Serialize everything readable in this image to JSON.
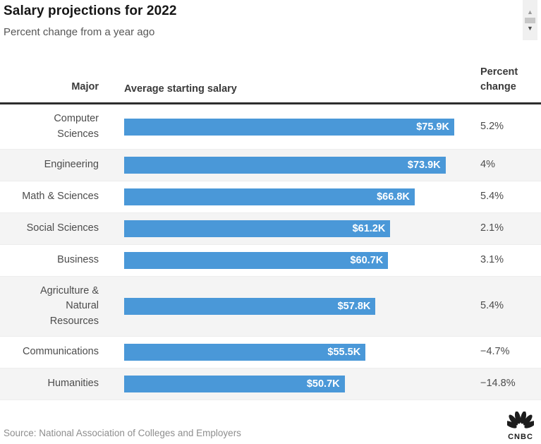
{
  "header": {
    "title": "Salary projections for 2022",
    "subtitle": "Percent change from a year ago"
  },
  "icons": {
    "scroll_up": "▲",
    "scroll_down": "▼"
  },
  "table": {
    "columns": {
      "major": "Major",
      "salary": "Average starting salary",
      "percent": "Percent\nchange"
    }
  },
  "rows": [
    {
      "major": "Computer\nSciences",
      "salary_label": "$75.9K",
      "percent_label": "5.2%"
    },
    {
      "major": "Engineering",
      "salary_label": "$73.9K",
      "percent_label": "4%"
    },
    {
      "major": "Math & Sciences",
      "salary_label": "$66.8K",
      "percent_label": "5.4%"
    },
    {
      "major": "Social Sciences",
      "salary_label": "$61.2K",
      "percent_label": "2.1%"
    },
    {
      "major": "Business",
      "salary_label": "$60.7K",
      "percent_label": "3.1%"
    },
    {
      "major": "Agriculture &\nNatural\nResources",
      "salary_label": "$57.8K",
      "percent_label": "5.4%"
    },
    {
      "major": "Communications",
      "salary_label": "$55.5K",
      "percent_label": "−4.7%"
    },
    {
      "major": "Humanities",
      "salary_label": "$50.7K",
      "percent_label": "−14.8%"
    }
  ],
  "chart_data": {
    "type": "bar",
    "orientation": "horizontal",
    "title": "Salary projections for 2022",
    "subtitle": "Percent change from a year ago",
    "categories": [
      "Computer Sciences",
      "Engineering",
      "Math & Sciences",
      "Social Sciences",
      "Business",
      "Agriculture & Natural Resources",
      "Communications",
      "Humanities"
    ],
    "series": [
      {
        "name": "Average starting salary",
        "unit": "USD thousands",
        "values": [
          75.9,
          73.9,
          66.8,
          61.2,
          60.7,
          57.8,
          55.5,
          50.7
        ],
        "labels": [
          "$75.9K",
          "$73.9K",
          "$66.8K",
          "$61.2K",
          "$60.7K",
          "$57.8K",
          "$55.5K",
          "$50.7K"
        ]
      },
      {
        "name": "Percent change",
        "unit": "percent",
        "values": [
          5.2,
          4,
          5.4,
          2.1,
          3.1,
          5.4,
          -4.7,
          -14.8
        ],
        "labels": [
          "5.2%",
          "4%",
          "5.4%",
          "2.1%",
          "3.1%",
          "5.4%",
          "−4.7%",
          "−14.8%"
        ]
      }
    ],
    "xlim": [
      0,
      75.9
    ],
    "bar_color": "#4a98d8",
    "stripe_color": "#f4f4f4",
    "grid": "off",
    "legend": "none"
  },
  "footer": {
    "source": "Source: National Association of Colleges and Employers",
    "logo_text": "CNBC"
  }
}
